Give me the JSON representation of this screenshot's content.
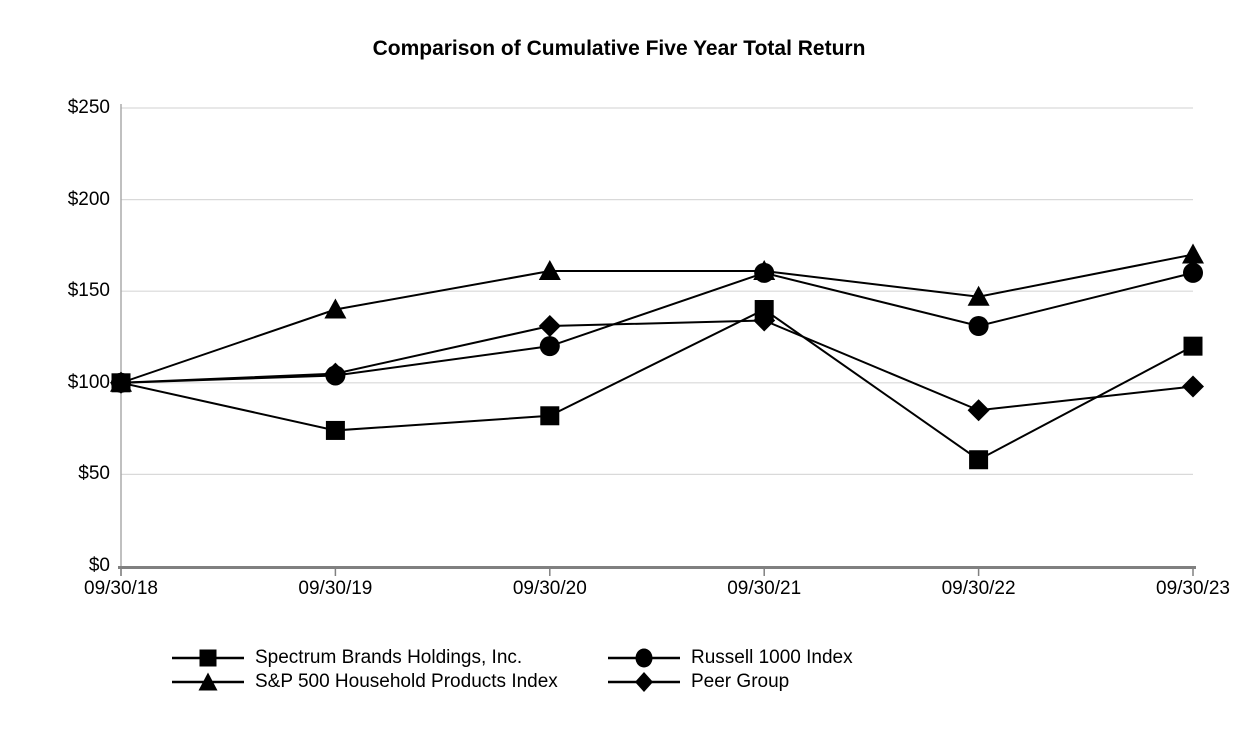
{
  "title": "Comparison of Cumulative Five Year Total Return",
  "chart_data": {
    "type": "line",
    "title": "Comparison of Cumulative Five Year Total Return",
    "xlabel": "",
    "ylabel": "",
    "categories": [
      "09/30/18",
      "09/30/19",
      "09/30/20",
      "09/30/21",
      "09/30/22",
      "09/30/23"
    ],
    "series": [
      {
        "name": "Spectrum Brands Holdings, Inc.",
        "marker": "square",
        "values": [
          100,
          74,
          82,
          140,
          58,
          120
        ]
      },
      {
        "name": "Russell 1000 Index",
        "marker": "circle",
        "values": [
          100,
          104,
          120,
          160,
          131,
          160
        ]
      },
      {
        "name": "S&P 500 Household Products Index",
        "marker": "triangle",
        "values": [
          100,
          140,
          161,
          161,
          147,
          170
        ]
      },
      {
        "name": "Peer Group",
        "marker": "diamond",
        "values": [
          100,
          105,
          131,
          134,
          85,
          98
        ]
      }
    ],
    "y_ticks": [
      "$0",
      "$50",
      "$100",
      "$150",
      "$200",
      "$250"
    ],
    "y_tick_values": [
      0,
      50,
      100,
      150,
      200,
      250
    ],
    "ylim": [
      0,
      250
    ],
    "grid": "horizontal gridlines on",
    "legend_position": "bottom",
    "colors": {
      "series_color": "#000000",
      "gridline_color": "#d9d9d9",
      "y_axis_color": "#a6a6a6",
      "x_axis_color": "#808080",
      "background": "#ffffff"
    }
  }
}
